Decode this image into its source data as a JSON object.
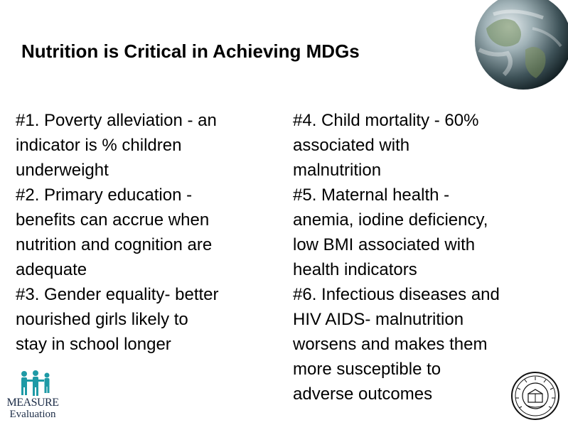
{
  "slide": {
    "title": "Nutrition is Critical in Achieving MDGs"
  },
  "left_column": {
    "items": [
      {
        "lines": [
          "#1. Poverty alleviation - an",
          "indicator is % children",
          "underweight"
        ]
      },
      {
        "lines": [
          "#2. Primary education -",
          "benefits can accrue when",
          "nutrition and cognition are",
          "adequate"
        ]
      },
      {
        "lines": [
          "#3. Gender equality- better",
          "nourished girls likely to",
          "stay in school longer"
        ]
      }
    ]
  },
  "right_column": {
    "items": [
      {
        "lines": [
          "#4. Child mortality - 60%",
          "associated with",
          "malnutrition"
        ]
      },
      {
        "lines": [
          "#5. Maternal health -",
          "anemia, iodine deficiency,",
          "low BMI associated with",
          "health indicators"
        ]
      },
      {
        "lines": [
          "#6. Infectious diseases and",
          "HIV AIDS- malnutrition",
          "worsens and makes them",
          "more susceptible to",
          "adverse outcomes"
        ]
      }
    ]
  },
  "logos": {
    "measure_name": "MEASURE",
    "measure_sub": "Evaluation",
    "measure_color": "#1e9aa6",
    "globe_icon": "globe-icon",
    "seal_icon": "university-seal-icon"
  }
}
